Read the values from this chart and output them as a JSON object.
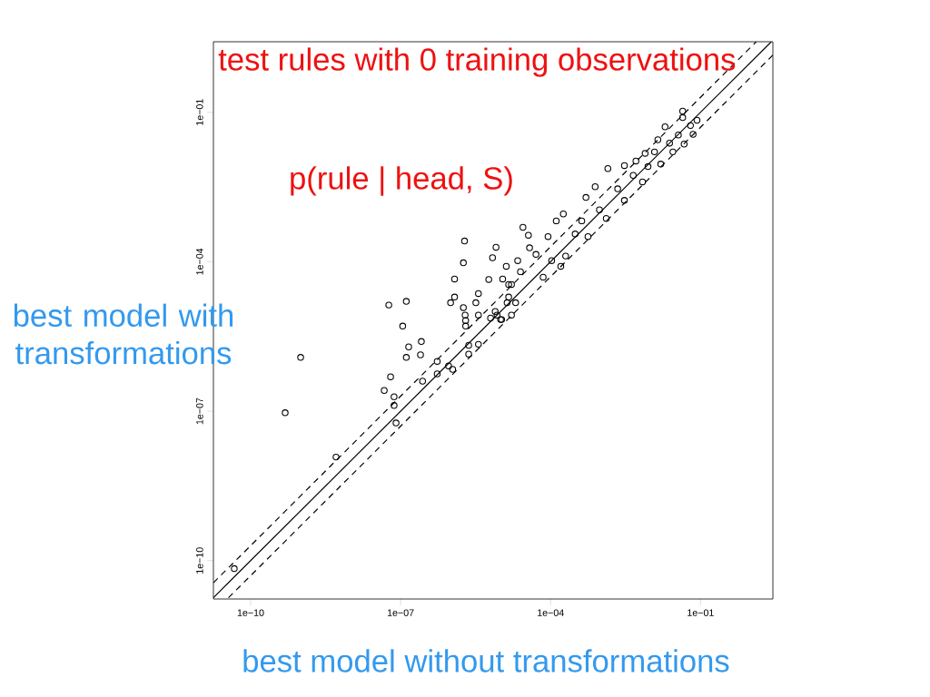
{
  "chart_data": {
    "type": "scatter",
    "title": "test rules with 0 training observations",
    "xlabel": "best model without transformations",
    "ylabel": "best model with transformations",
    "annotations": [
      "p(rule | head, S)"
    ],
    "log": "xy",
    "marker": "circle",
    "grid": false,
    "xlim": [
      1.8e-11,
      2.8
    ],
    "ylim": [
      1.7e-11,
      2.6
    ],
    "xticks": [
      {
        "value": 1e-10,
        "label": "1e−10"
      },
      {
        "value": 1e-07,
        "label": "1e−07"
      },
      {
        "value": 0.0001,
        "label": "1e−04"
      },
      {
        "value": 0.1,
        "label": "1e−01"
      }
    ],
    "yticks": [
      {
        "value": 1e-10,
        "label": "1e−10"
      },
      {
        "value": 1e-07,
        "label": "1e−07"
      },
      {
        "value": 0.0001,
        "label": "1e−04"
      },
      {
        "value": 0.1,
        "label": "1e−01"
      }
    ],
    "series": [
      {
        "color": "#000000",
        "x": [
          4.7e-11,
          4.9e-10,
          1e-09,
          5.1e-09,
          8.1e-08,
          6.3e-08,
          7.4e-08,
          7.4e-08,
          4.7e-08,
          5.8e-08,
          1.3e-07,
          1.1e-07,
          1.3e-07,
          1.45e-07,
          2.6e-07,
          2.5e-07,
          5.4e-07,
          5.4e-07,
          2.75e-07,
          9.1e-07,
          1.1e-06,
          1.8e-06,
          1.9e-06,
          1.8e-06,
          1.2e-06,
          1.2e-06,
          1e-06,
          1.95e-06,
          2e-06,
          2.3e-06,
          2.3e-06,
          3.6e-06,
          3.6e-06,
          3.2e-06,
          3.6e-06,
          5.8e-06,
          6.9e-06,
          8.1e-06,
          1.3e-05,
          1.1e-05,
          7.8e-06,
          6.3e-06,
          1e-05,
          1.45e-05,
          1.35e-05,
          1.65e-05,
          2.8e-05,
          3.6e-05,
          8.9e-05,
          0.00013,
          0.00018,
          0.00051,
          0.00078,
          0.0014,
          0.003,
          0.0051,
          0.0078,
          0.014,
          0.0195,
          0.044,
          0.044,
          0.085,
          2e-05,
          1.05e-05,
          7.1e-05,
          0.00016,
          0.0002,
          0.00056,
          0.0013,
          0.003,
          0.0069,
          0.016,
          0.028,
          0.047,
          0.071,
          0.000105,
          0.00031,
          0.00042,
          0.00095,
          0.0022,
          0.0045,
          0.0089,
          0.012,
          0.024,
          0.036,
          0.063,
          5.1e-05,
          3.8e-05,
          2.2e-05,
          2.5e-05,
          1.65e-05,
          1.45e-05,
          8.5e-06,
          2e-06
        ],
        "values": [
          6.9e-11,
          9.3e-08,
          1.2e-06,
          1.2e-08,
          5.8e-08,
          4.9e-07,
          1.95e-07,
          1.3e-07,
          2.6e-07,
          1.35e-05,
          1.6e-05,
          5.1e-06,
          1.2e-06,
          1.95e-06,
          2.5e-06,
          1.35e-06,
          1e-06,
          5.6e-07,
          4e-07,
          8.1e-07,
          6.9e-07,
          1.2e-05,
          0.00026,
          9.5e-05,
          4.5e-05,
          1.95e-05,
          1.5e-05,
          8.5e-06,
          5.1e-06,
          2.1e-06,
          1.4e-06,
          2.2e-06,
          8.5e-06,
          1.5e-05,
          2.3e-05,
          4.4e-05,
          0.00012,
          0.000195,
          8.1e-05,
          4.5e-05,
          1e-05,
          7.4e-06,
          6.9e-06,
          3.5e-05,
          1.5e-05,
          8.5e-06,
          0.00049,
          0.00034,
          0.00032,
          0.00066,
          0.00091,
          0.00195,
          0.0032,
          0.0074,
          0.0085,
          0.0105,
          0.015,
          0.028,
          0.051,
          0.105,
          0.078,
          0.069,
          1.5e-05,
          6.9e-06,
          4.9e-05,
          8.1e-05,
          0.00013,
          0.00032,
          0.00074,
          0.0017,
          0.004,
          0.0091,
          0.016,
          0.023,
          0.036,
          0.000105,
          0.00036,
          0.00066,
          0.0011,
          0.0029,
          0.0054,
          0.0081,
          0.016,
          0.024,
          0.035,
          0.054,
          0.00014,
          0.00019,
          0.000105,
          6.3e-05,
          3.5e-05,
          1.95e-05,
          8.5e-06,
          6.6e-06
        ]
      },
      {
        "type": "line",
        "color": "#000000",
        "line_style": "solid",
        "marker": "none",
        "x": [
          1.8e-11,
          2.6
        ],
        "values": [
          1.8e-11,
          2.6
        ]
      },
      {
        "type": "line",
        "color": "#000000",
        "line_style": "dashed",
        "marker": "none",
        "x": [
          1.8e-11,
          1.3
        ],
        "values": [
          3.6e-11,
          2.6
        ]
      },
      {
        "type": "line",
        "color": "#000000",
        "line_style": "dashed",
        "marker": "none",
        "x": [
          3.6e-11,
          2.8
        ],
        "values": [
          1.8e-11,
          1.4
        ]
      }
    ]
  }
}
